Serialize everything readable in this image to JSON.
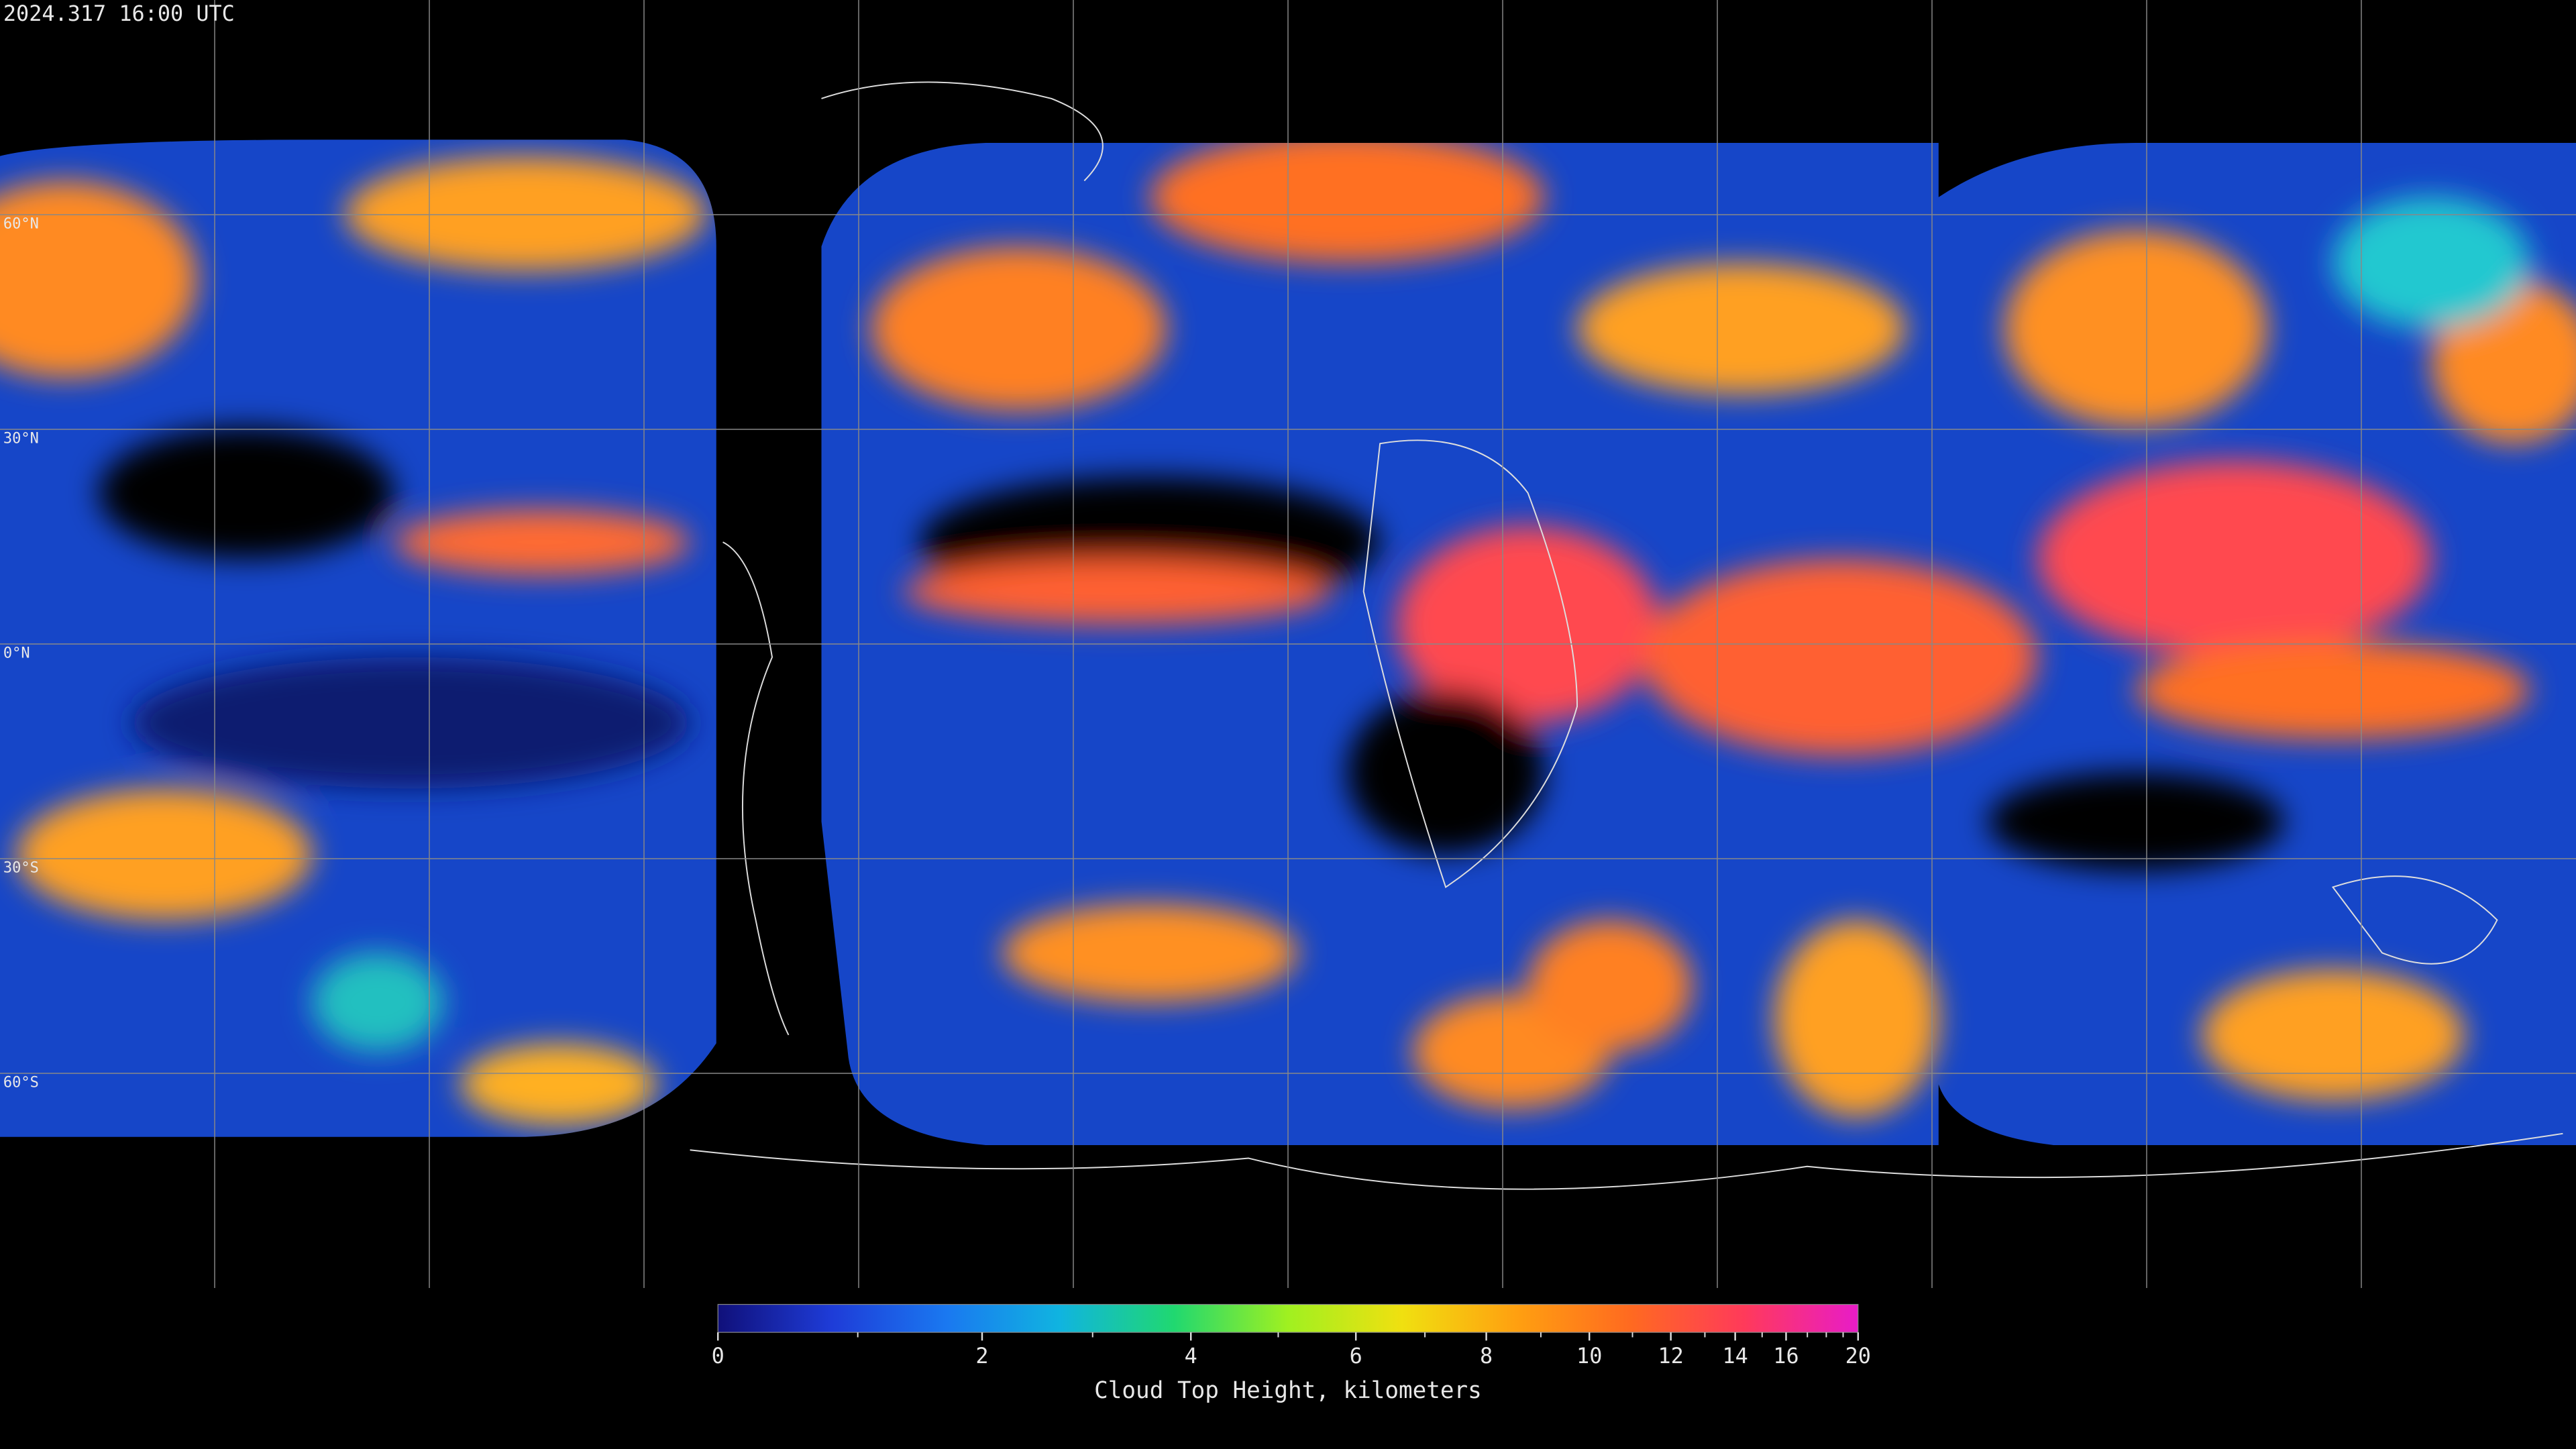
{
  "timestamp": "2024.317 16:00 UTC",
  "latitude_lines": [
    {
      "value": 60,
      "label": "60°N"
    },
    {
      "value": 30,
      "label": "30°N"
    },
    {
      "value": 0,
      "label": "0°N"
    },
    {
      "value": -30,
      "label": "30°S"
    },
    {
      "value": -60,
      "label": "60°S"
    }
  ],
  "colorbar": {
    "title": "Cloud Top Height, kilometers",
    "range": [
      0,
      20
    ],
    "ticks": [
      0,
      2,
      4,
      6,
      8,
      10,
      12,
      14,
      16,
      20
    ],
    "minor_ticks": [
      1,
      3,
      5,
      7,
      9,
      11,
      13,
      15,
      17,
      18,
      19
    ],
    "colors": [
      "#10107a",
      "#1e3cd8",
      "#1a78f0",
      "#10b4e0",
      "#20d870",
      "#a0f020",
      "#f0e010",
      "#ffa010",
      "#ff6a20",
      "#ff3a5a",
      "#e81cc8"
    ]
  }
}
